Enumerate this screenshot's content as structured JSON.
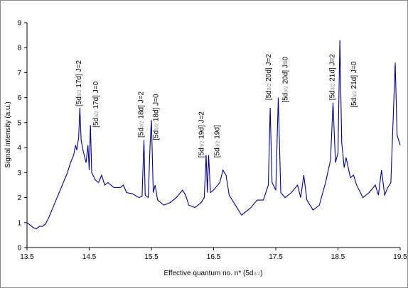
{
  "chart_data": {
    "type": "line",
    "ylabel": "Signal intensity (a.u.)",
    "xlabel": [
      "Effective quantum no. n* (5d",
      "3/2",
      ")"
    ],
    "xlim": [
      13.5,
      19.5
    ],
    "xticks": [
      13.5,
      14.5,
      15.5,
      16.5,
      17.5,
      18.5,
      19.5
    ],
    "ylim": [
      0,
      9
    ],
    "yticks": [
      0,
      1,
      2,
      3,
      4,
      5,
      6,
      7,
      8,
      9
    ],
    "grid": false,
    "series": [
      {
        "color": "#000080",
        "x": [
          13.5,
          13.55,
          13.6,
          13.65,
          13.7,
          13.75,
          13.8,
          13.85,
          13.9,
          13.95,
          14.0,
          14.05,
          14.1,
          14.15,
          14.2,
          14.25,
          14.28,
          14.3,
          14.33,
          14.35,
          14.37,
          14.4,
          14.45,
          14.48,
          14.5,
          14.52,
          14.54,
          14.6,
          14.65,
          14.7,
          14.75,
          14.8,
          14.9,
          15.0,
          15.05,
          15.1,
          15.2,
          15.3,
          15.35,
          15.38,
          15.4,
          15.45,
          15.48,
          15.5,
          15.53,
          15.56,
          15.6,
          15.7,
          15.8,
          15.9,
          16.0,
          16.05,
          16.1,
          16.2,
          16.3,
          16.35,
          16.38,
          16.4,
          16.42,
          16.45,
          16.5,
          16.6,
          16.65,
          16.7,
          16.75,
          16.85,
          16.95,
          17.0,
          17.1,
          17.2,
          17.3,
          17.38,
          17.41,
          17.44,
          17.5,
          17.54,
          17.58,
          17.65,
          17.75,
          17.85,
          17.9,
          17.95,
          18.0,
          18.1,
          18.2,
          18.3,
          18.38,
          18.42,
          18.46,
          18.5,
          18.53,
          18.56,
          18.6,
          18.63,
          18.7,
          18.75,
          18.8,
          18.9,
          19.0,
          19.1,
          19.15,
          19.2,
          19.25,
          19.3,
          19.35,
          19.42,
          19.45,
          19.5
        ],
        "values": [
          1.0,
          0.9,
          0.8,
          0.75,
          0.85,
          0.85,
          0.95,
          1.2,
          1.5,
          1.8,
          2.1,
          2.4,
          2.7,
          3.0,
          3.4,
          3.7,
          4.1,
          3.9,
          4.4,
          5.6,
          4.3,
          3.9,
          3.4,
          4.1,
          3.1,
          4.9,
          3.0,
          2.7,
          2.6,
          2.9,
          2.5,
          2.6,
          2.4,
          2.4,
          2.5,
          2.2,
          2.15,
          2.0,
          2.05,
          4.3,
          2.1,
          2.0,
          4.2,
          5.1,
          2.2,
          2.5,
          1.9,
          1.7,
          1.8,
          2.0,
          2.3,
          2.1,
          1.7,
          1.6,
          1.8,
          2.0,
          3.7,
          2.2,
          3.7,
          2.2,
          2.3,
          2.6,
          3.1,
          2.9,
          2.1,
          1.7,
          1.3,
          1.4,
          1.6,
          1.9,
          1.9,
          2.5,
          5.6,
          2.6,
          2.3,
          6.0,
          2.2,
          2.0,
          2.2,
          2.5,
          2.0,
          2.9,
          1.9,
          1.5,
          1.7,
          2.6,
          3.5,
          5.8,
          3.4,
          3.8,
          8.3,
          4.2,
          3.2,
          3.6,
          2.8,
          2.9,
          2.5,
          2.0,
          2.2,
          2.5,
          2.1,
          3.1,
          2.1,
          2.4,
          2.6,
          7.4,
          4.5,
          4.1
        ]
      }
    ],
    "annotations": [
      {
        "label": [
          "[5d",
          "3/2",
          " 17d] J=2"
        ],
        "x": 14.33,
        "y": 5.65
      },
      {
        "label": [
          "[5d",
          "3/2",
          " 17d] J=0"
        ],
        "x": 14.6,
        "y": 4.8
      },
      {
        "label": [
          "[5d",
          "3/2",
          " 18d] J=2"
        ],
        "x": 15.33,
        "y": 4.4
      },
      {
        "label": [
          "[5d",
          "3/2",
          " 18d] J=0"
        ],
        "x": 15.57,
        "y": 4.3
      },
      {
        "label": [
          "[5d",
          "3/2",
          " 19d] J=2"
        ],
        "x": 16.3,
        "y": 3.6
      },
      {
        "label": [
          "[5d",
          "3/2",
          " 19d]"
        ],
        "x": 16.55,
        "y": 3.6
      },
      {
        "label": [
          "[5d",
          "3/2",
          " 20d] J=2"
        ],
        "x": 17.38,
        "y": 5.9
      },
      {
        "label": [
          "[5d",
          "3/2",
          " 20d] J=0"
        ],
        "x": 17.65,
        "y": 5.8
      },
      {
        "label": [
          "[5d",
          "3/2",
          " 21d] J=2"
        ],
        "x": 18.4,
        "y": 5.9
      },
      {
        "label": [
          "[5d",
          "3/2",
          " 21d] J=0"
        ],
        "x": 18.75,
        "y": 5.6
      }
    ]
  }
}
